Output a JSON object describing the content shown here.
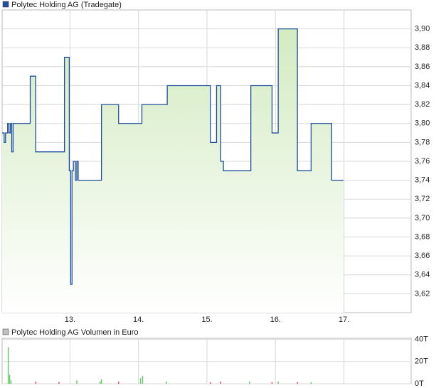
{
  "chart_data": [
    {
      "type": "line",
      "title": "Polytec Holding AG (Tradegate)",
      "step": true,
      "xlim": [
        12.01,
        17.98
      ],
      "ylim": [
        3.6,
        3.92
      ],
      "xticks": [
        {
          "value": 13,
          "label": "13."
        },
        {
          "value": 14,
          "label": "14."
        },
        {
          "value": 15,
          "label": "15."
        },
        {
          "value": 16,
          "label": "16."
        },
        {
          "value": 17,
          "label": "17."
        }
      ],
      "yticks": [
        {
          "value": 3.62,
          "label": "3,62"
        },
        {
          "value": 3.64,
          "label": "3,64"
        },
        {
          "value": 3.66,
          "label": "3,66"
        },
        {
          "value": 3.68,
          "label": "3,68"
        },
        {
          "value": 3.7,
          "label": "3,70"
        },
        {
          "value": 3.72,
          "label": "3,72"
        },
        {
          "value": 3.74,
          "label": "3,74"
        },
        {
          "value": 3.76,
          "label": "3,76"
        },
        {
          "value": 3.78,
          "label": "3,78"
        },
        {
          "value": 3.8,
          "label": "3,80"
        },
        {
          "value": 3.82,
          "label": "3,82"
        },
        {
          "value": 3.84,
          "label": "3,84"
        },
        {
          "value": 3.86,
          "label": "3,86"
        },
        {
          "value": 3.88,
          "label": "3,88"
        },
        {
          "value": 3.9,
          "label": "3,90"
        }
      ],
      "grid": true,
      "fill_color": "#d3ebc1",
      "series": [
        {
          "name": "Polytec Holding AG (Tradegate)",
          "color": "#1f4e9c",
          "x": [
            12.01,
            12.04,
            12.06,
            12.09,
            12.11,
            12.13,
            12.15,
            12.17,
            12.42,
            12.5,
            12.92,
            12.99,
            13.01,
            13.03,
            13.05,
            13.08,
            13.1,
            13.12,
            13.46,
            13.71,
            14.05,
            14.42,
            15.05,
            15.14,
            15.2,
            15.24,
            15.64,
            15.95,
            16.04,
            16.32,
            16.52,
            16.82,
            16.99
          ],
          "values": [
            3.79,
            3.78,
            3.79,
            3.8,
            3.79,
            3.8,
            3.77,
            3.8,
            3.85,
            3.77,
            3.87,
            3.75,
            3.63,
            3.75,
            3.76,
            3.74,
            3.76,
            3.74,
            3.82,
            3.8,
            3.82,
            3.84,
            3.78,
            3.84,
            3.76,
            3.75,
            3.84,
            3.79,
            3.9,
            3.75,
            3.8,
            3.74,
            3.74
          ]
        }
      ]
    },
    {
      "type": "bar",
      "title": "Polytec Holding AG Volumen in Euro",
      "xlim": [
        12.01,
        17.98
      ],
      "ylim": [
        0,
        41000
      ],
      "yticks": [
        {
          "value": 0,
          "label": "0T"
        },
        {
          "value": 20000,
          "label": "20T"
        },
        {
          "value": 40000,
          "label": "40T"
        }
      ],
      "grid": true,
      "legend_color": "#c0c0c0",
      "x": [
        12.1,
        12.12,
        12.14,
        12.5,
        12.84,
        13.1,
        13.44,
        13.46,
        13.71,
        14.03,
        14.06,
        14.41,
        15.05,
        15.2,
        15.62,
        15.95,
        16.04,
        16.32,
        16.52
      ],
      "values": [
        33000,
        8000,
        3000,
        2000,
        1500,
        3000,
        2000,
        4000,
        2000,
        5000,
        7000,
        2000,
        1500,
        2000,
        2000,
        1500,
        2000,
        1500,
        1500
      ],
      "colors": [
        "#66cc66",
        "#66cc66",
        "#66cc66",
        "#e05050",
        "#e05050",
        "#66cc66",
        "#66cc66",
        "#66cc66",
        "#e05050",
        "#66cc66",
        "#66cc66",
        "#66cc66",
        "#e05050",
        "#e05050",
        "#66cc66",
        "#e05050",
        "#66cc66",
        "#e05050",
        "#66cc66"
      ]
    }
  ]
}
